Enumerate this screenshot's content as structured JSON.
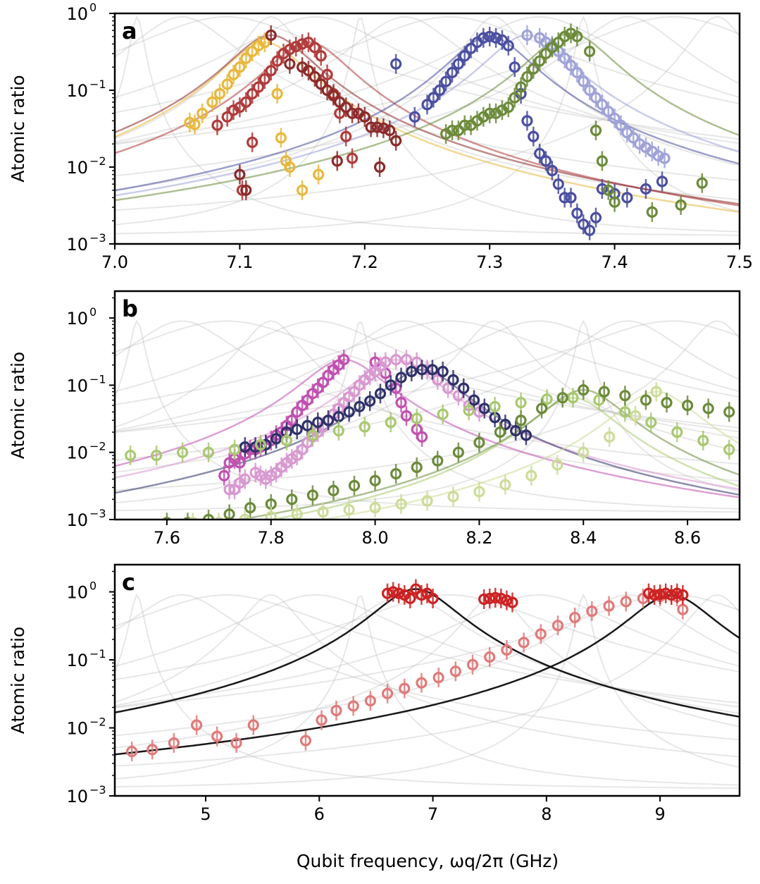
{
  "chart_data": [
    {
      "type": "scatter",
      "panel_label": "a",
      "title": "",
      "xlabel": "",
      "ylabel": "Atomic ratio",
      "xlim": [
        7.0,
        7.5
      ],
      "ylim_log10": [
        -3,
        0
      ],
      "yscale": "log",
      "x_ticks": [
        "7.0",
        "7.1",
        "7.2",
        "7.3",
        "7.4",
        "7.5"
      ],
      "y_ticks": [
        {
          "base": "10",
          "exp": "0"
        },
        {
          "base": "10",
          "exp": "−1"
        },
        {
          "base": "10",
          "exp": "−2"
        },
        {
          "base": "10",
          "exp": "−3"
        }
      ],
      "series": [
        {
          "name": "yellow",
          "color": "#e8b83c",
          "x": [
            7.06,
            7.064,
            7.07,
            7.078,
            7.084,
            7.09,
            7.095,
            7.1,
            7.105,
            7.11,
            7.115,
            7.12,
            7.13,
            7.133,
            7.137,
            7.14,
            7.15,
            7.163
          ],
          "y": [
            0.038,
            0.036,
            0.05,
            0.07,
            0.09,
            0.12,
            0.16,
            0.2,
            0.26,
            0.32,
            0.38,
            0.42,
            0.09,
            0.024,
            0.012,
            0.01,
            0.005,
            0.008
          ]
        },
        {
          "name": "red",
          "color": "#b03a3a",
          "x": [
            7.082,
            7.09,
            7.095,
            7.1,
            7.105,
            7.11,
            7.115,
            7.12,
            7.125,
            7.13,
            7.135,
            7.14,
            7.145,
            7.15,
            7.155,
            7.16,
            7.165,
            7.17,
            7.175,
            7.18,
            7.185,
            7.19,
            7.11,
            7.102
          ],
          "y": [
            0.035,
            0.045,
            0.055,
            0.06,
            0.07,
            0.09,
            0.11,
            0.14,
            0.18,
            0.24,
            0.3,
            0.34,
            0.37,
            0.4,
            0.42,
            0.36,
            0.28,
            0.16,
            0.09,
            0.05,
            0.025,
            0.013,
            0.021,
            0.005
          ]
        },
        {
          "name": "darkred",
          "color": "#8c2a2a",
          "x": [
            7.125,
            7.14,
            7.15,
            7.155,
            7.16,
            7.165,
            7.17,
            7.175,
            7.18,
            7.185,
            7.19,
            7.195,
            7.2,
            7.205,
            7.21,
            7.215,
            7.22,
            7.225,
            7.105,
            7.1,
            7.178,
            7.212
          ],
          "y": [
            0.52,
            0.22,
            0.2,
            0.18,
            0.15,
            0.12,
            0.1,
            0.085,
            0.07,
            0.06,
            0.05,
            0.05,
            0.045,
            0.033,
            0.033,
            0.032,
            0.03,
            0.022,
            0.005,
            0.008,
            0.012,
            0.01
          ]
        },
        {
          "name": "blue",
          "color": "#4a4ea0",
          "x": [
            7.225,
            7.24,
            7.25,
            7.255,
            7.26,
            7.265,
            7.27,
            7.275,
            7.28,
            7.285,
            7.29,
            7.295,
            7.3,
            7.305,
            7.31,
            7.315,
            7.32,
            7.325,
            7.33,
            7.335,
            7.34,
            7.345,
            7.35,
            7.355,
            7.36,
            7.365,
            7.37,
            7.375,
            7.38,
            7.385,
            7.39,
            7.4,
            7.41,
            7.425,
            7.438
          ],
          "y": [
            0.22,
            0.045,
            0.065,
            0.08,
            0.1,
            0.13,
            0.17,
            0.22,
            0.28,
            0.35,
            0.42,
            0.48,
            0.5,
            0.48,
            0.45,
            0.38,
            0.2,
            0.09,
            0.04,
            0.025,
            0.015,
            0.012,
            0.009,
            0.006,
            0.004,
            0.004,
            0.0025,
            0.0018,
            0.0015,
            0.0022,
            0.0052,
            0.0045,
            0.004,
            0.0052,
            0.0065
          ]
        },
        {
          "name": "lightblue",
          "color": "#9ea2d8",
          "x": [
            7.33,
            7.34,
            7.345,
            7.35,
            7.355,
            7.36,
            7.365,
            7.37,
            7.375,
            7.38,
            7.385,
            7.39,
            7.395,
            7.4,
            7.405,
            7.41,
            7.415,
            7.42,
            7.425,
            7.43,
            7.435,
            7.44
          ],
          "y": [
            0.52,
            0.48,
            0.42,
            0.38,
            0.32,
            0.26,
            0.21,
            0.17,
            0.13,
            0.1,
            0.08,
            0.065,
            0.053,
            0.043,
            0.035,
            0.028,
            0.024,
            0.02,
            0.018,
            0.016,
            0.014,
            0.013
          ]
        },
        {
          "name": "olive",
          "color": "#6b8a3a",
          "x": [
            7.265,
            7.27,
            7.275,
            7.28,
            7.285,
            7.29,
            7.295,
            7.3,
            7.305,
            7.31,
            7.315,
            7.32,
            7.325,
            7.33,
            7.335,
            7.34,
            7.345,
            7.35,
            7.355,
            7.36,
            7.365,
            7.37,
            7.38,
            7.385,
            7.39,
            7.395,
            7.4,
            7.43,
            7.453,
            7.47
          ],
          "y": [
            0.027,
            0.03,
            0.03,
            0.035,
            0.035,
            0.04,
            0.045,
            0.05,
            0.05,
            0.055,
            0.06,
            0.08,
            0.11,
            0.15,
            0.19,
            0.24,
            0.3,
            0.36,
            0.42,
            0.5,
            0.55,
            0.5,
            0.32,
            0.03,
            0.012,
            0.005,
            0.0035,
            0.0026,
            0.0032,
            0.0062
          ]
        }
      ]
    },
    {
      "type": "scatter",
      "panel_label": "b",
      "title": "",
      "xlabel": "",
      "ylabel": "Atomic ratio",
      "xlim": [
        7.5,
        8.7
      ],
      "ylim_log10": [
        -3,
        0.4
      ],
      "yscale": "log",
      "x_ticks": [
        "7.6",
        "7.8",
        "8.0",
        "8.2",
        "8.4",
        "8.6"
      ],
      "y_ticks": [
        {
          "base": "10",
          "exp": "0"
        },
        {
          "base": "10",
          "exp": "−1"
        },
        {
          "base": "10",
          "exp": "−2"
        },
        {
          "base": "10",
          "exp": "−3"
        }
      ],
      "series": [
        {
          "name": "magenta",
          "color": "#c050b0",
          "x": [
            7.71,
            7.72,
            7.73,
            7.74,
            7.75,
            7.76,
            7.77,
            7.78,
            7.79,
            7.8,
            7.81,
            7.82,
            7.83,
            7.84,
            7.85,
            7.86,
            7.87,
            7.88,
            7.89,
            7.9,
            7.91,
            7.92,
            7.93,
            7.94,
            8.0,
            8.02,
            8.04,
            8.05,
            8.06,
            8.08,
            8.09
          ],
          "y": [
            0.0045,
            0.007,
            0.008,
            0.007,
            0.0095,
            0.011,
            0.011,
            0.012,
            0.013,
            0.015,
            0.018,
            0.02,
            0.025,
            0.03,
            0.04,
            0.05,
            0.06,
            0.075,
            0.09,
            0.11,
            0.14,
            0.17,
            0.2,
            0.24,
            0.22,
            0.15,
            0.09,
            0.055,
            0.035,
            0.022,
            0.017
          ]
        },
        {
          "name": "lightpink",
          "color": "#d898d0",
          "x": [
            7.72,
            7.73,
            7.74,
            7.75,
            7.77,
            7.78,
            7.79,
            7.8,
            7.81,
            7.82,
            7.83,
            7.84,
            7.85,
            7.86,
            7.87,
            7.88,
            7.89,
            7.9,
            7.91,
            7.92,
            7.93,
            7.94,
            7.95,
            7.96,
            7.97,
            7.98,
            7.99,
            8.0,
            8.01,
            8.02,
            8.04,
            8.06,
            8.08,
            8.1,
            8.12,
            8.14,
            8.16,
            8.18,
            8.2
          ],
          "y": [
            0.0028,
            0.0028,
            0.0035,
            0.004,
            0.005,
            0.0045,
            0.004,
            0.0045,
            0.005,
            0.006,
            0.007,
            0.008,
            0.009,
            0.011,
            0.014,
            0.017,
            0.02,
            0.024,
            0.03,
            0.037,
            0.045,
            0.055,
            0.067,
            0.08,
            0.1,
            0.12,
            0.14,
            0.16,
            0.19,
            0.22,
            0.24,
            0.24,
            0.22,
            0.17,
            0.12,
            0.09,
            0.07,
            0.05,
            0.04
          ]
        },
        {
          "name": "navy",
          "color": "#2e3068",
          "x": [
            7.75,
            7.77,
            7.79,
            7.81,
            7.83,
            7.85,
            7.87,
            7.89,
            7.91,
            7.93,
            7.95,
            7.97,
            7.99,
            8.01,
            8.03,
            8.05,
            8.07,
            8.09,
            8.11,
            8.13,
            8.15,
            8.17,
            8.19,
            8.21,
            8.23,
            8.25,
            8.27,
            8.29
          ],
          "y": [
            0.012,
            0.012,
            0.013,
            0.016,
            0.02,
            0.022,
            0.025,
            0.028,
            0.03,
            0.034,
            0.04,
            0.048,
            0.058,
            0.075,
            0.1,
            0.13,
            0.16,
            0.17,
            0.17,
            0.16,
            0.12,
            0.09,
            0.06,
            0.045,
            0.033,
            0.026,
            0.021,
            0.018
          ]
        },
        {
          "name": "yellowgreen",
          "color": "#a8c870",
          "x": [
            7.53,
            7.58,
            7.63,
            7.68,
            7.73,
            7.78,
            7.83,
            7.88,
            7.93,
            7.98,
            8.03,
            8.08,
            8.13,
            8.18,
            8.23,
            8.28,
            8.33,
            8.38,
            8.43,
            8.48,
            8.53,
            8.58,
            8.63,
            8.68
          ],
          "y": [
            0.009,
            0.009,
            0.01,
            0.01,
            0.011,
            0.013,
            0.015,
            0.018,
            0.021,
            0.024,
            0.028,
            0.032,
            0.037,
            0.042,
            0.048,
            0.055,
            0.062,
            0.065,
            0.06,
            0.04,
            0.028,
            0.02,
            0.015,
            0.011
          ]
        },
        {
          "name": "olivegreen",
          "color": "#6b8a3a",
          "x": [
            7.6,
            7.64,
            7.68,
            7.72,
            7.76,
            7.8,
            7.84,
            7.88,
            7.92,
            7.96,
            8.0,
            8.04,
            8.08,
            8.12,
            8.16,
            8.2,
            8.24,
            8.28,
            8.32,
            8.36,
            8.4,
            8.44,
            8.48,
            8.52,
            8.56,
            8.6,
            8.64,
            8.68
          ],
          "y": [
            0.0009,
            0.0009,
            0.001,
            0.0012,
            0.0015,
            0.0017,
            0.002,
            0.0023,
            0.0027,
            0.0032,
            0.0038,
            0.0048,
            0.006,
            0.0075,
            0.01,
            0.014,
            0.02,
            0.03,
            0.045,
            0.065,
            0.085,
            0.08,
            0.07,
            0.06,
            0.055,
            0.05,
            0.045,
            0.04
          ]
        },
        {
          "name": "palegreen",
          "color": "#ccdc98",
          "x": [
            7.65,
            7.7,
            7.75,
            7.8,
            7.85,
            7.9,
            7.95,
            8.0,
            8.05,
            8.1,
            8.15,
            8.2,
            8.25,
            8.3,
            8.35,
            8.4,
            8.45,
            8.5,
            8.54
          ],
          "y": [
            0.0009,
            0.0009,
            0.001,
            0.0011,
            0.0012,
            0.0013,
            0.0014,
            0.0015,
            0.0017,
            0.0019,
            0.0022,
            0.0026,
            0.0033,
            0.0045,
            0.0065,
            0.01,
            0.017,
            0.035,
            0.08
          ]
        }
      ]
    },
    {
      "type": "scatter",
      "panel_label": "c",
      "title": "",
      "xlabel": "Qubit frequency, ωq/2π (GHz)",
      "ylabel": "Atomic ratio",
      "xlim": [
        4.2,
        9.7
      ],
      "ylim_log10": [
        -3,
        0.4
      ],
      "yscale": "log",
      "x_ticks": [
        "5",
        "6",
        "7",
        "8",
        "9"
      ],
      "y_ticks": [
        {
          "base": "10",
          "exp": "0"
        },
        {
          "base": "10",
          "exp": "−1"
        },
        {
          "base": "10",
          "exp": "−2"
        },
        {
          "base": "10",
          "exp": "−3"
        }
      ],
      "series": [
        {
          "name": "red",
          "color": "#e07a7a",
          "x": [
            4.35,
            4.53,
            4.72,
            4.92,
            5.1,
            5.27,
            5.42,
            5.88,
            6.02,
            6.15,
            6.3,
            6.45,
            6.6,
            6.75,
            6.9,
            7.05,
            7.2,
            7.35,
            7.5,
            7.65,
            7.8,
            7.95,
            8.1,
            8.25,
            8.4,
            8.55,
            8.7,
            8.85,
            9.0,
            9.1,
            9.15,
            9.2
          ],
          "y": [
            0.0045,
            0.0048,
            0.006,
            0.011,
            0.0075,
            0.006,
            0.011,
            0.0065,
            0.013,
            0.018,
            0.021,
            0.025,
            0.032,
            0.038,
            0.046,
            0.055,
            0.068,
            0.085,
            0.11,
            0.14,
            0.18,
            0.24,
            0.32,
            0.42,
            0.52,
            0.62,
            0.72,
            0.8,
            0.86,
            0.9,
            0.85,
            0.55
          ]
        },
        {
          "name": "darkred",
          "color": "#cc2222",
          "x": [
            6.6,
            6.65,
            6.7,
            6.75,
            6.8,
            6.85,
            6.9,
            6.95,
            7.0,
            7.45,
            7.5,
            7.55,
            7.6,
            7.65,
            7.7,
            8.9,
            8.95,
            9.0,
            9.05,
            9.1,
            9.15,
            9.2
          ],
          "y": [
            0.95,
            1.0,
            0.95,
            0.9,
            0.8,
            1.1,
            0.9,
            0.95,
            0.8,
            0.78,
            0.8,
            0.82,
            0.8,
            0.75,
            0.7,
            0.95,
            0.9,
            0.92,
            0.95,
            0.9,
            0.95,
            0.9
          ]
        }
      ]
    }
  ]
}
